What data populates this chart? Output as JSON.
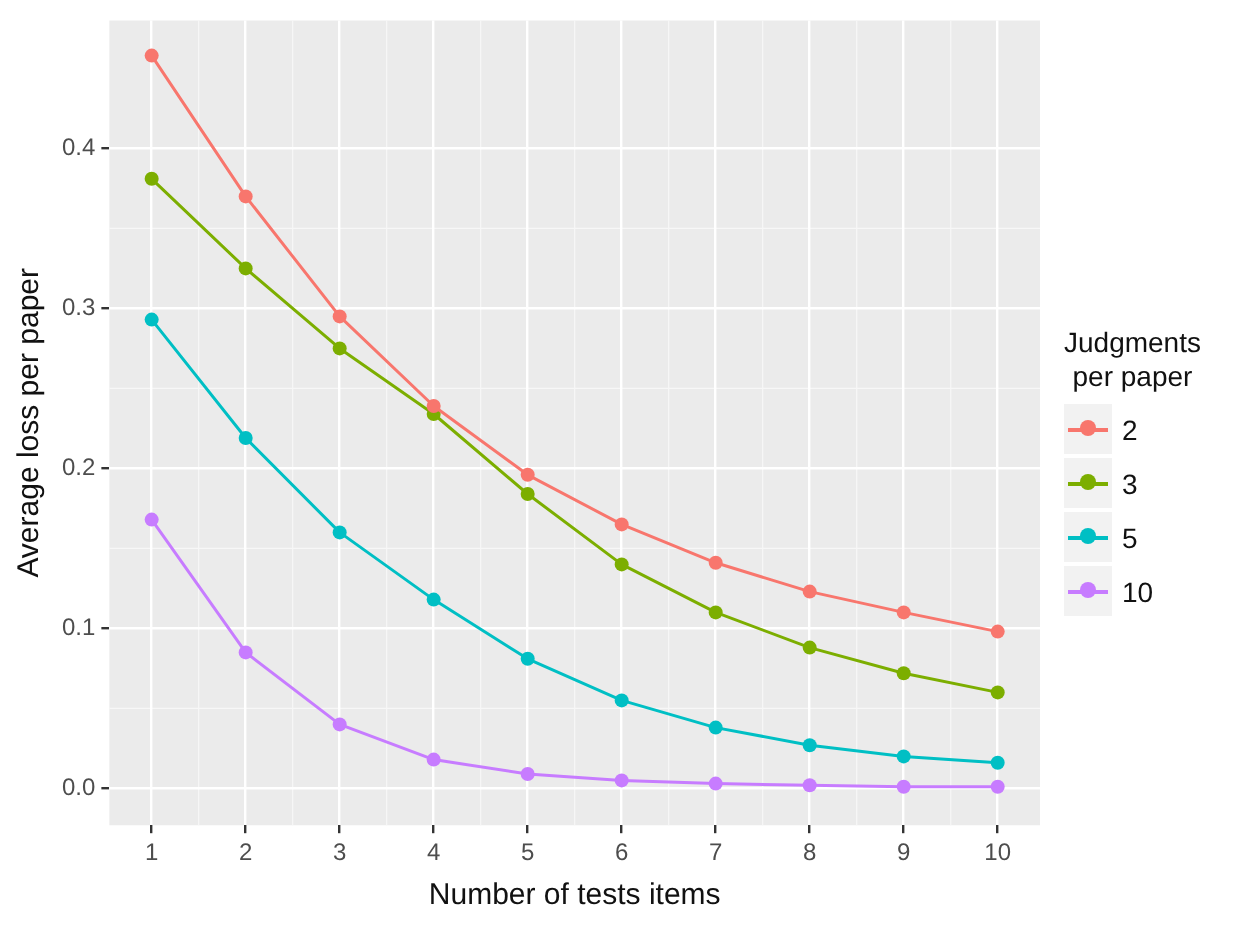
{
  "chart_data": {
    "type": "line",
    "xlabel": "Number of tests items",
    "ylabel": "Average loss per paper",
    "legend_title": "Judgments\nper paper",
    "x": [
      1,
      2,
      3,
      4,
      5,
      6,
      7,
      8,
      9,
      10
    ],
    "series": [
      {
        "name": "2",
        "color": "#f8766d",
        "values": [
          0.458,
          0.37,
          0.295,
          0.239,
          0.196,
          0.165,
          0.141,
          0.123,
          0.11,
          0.098
        ]
      },
      {
        "name": "3",
        "color": "#7cae00",
        "values": [
          0.381,
          0.325,
          0.275,
          0.234,
          0.184,
          0.14,
          0.11,
          0.088,
          0.072,
          0.06
        ]
      },
      {
        "name": "5",
        "color": "#00bfc4",
        "values": [
          0.293,
          0.219,
          0.16,
          0.118,
          0.081,
          0.055,
          0.038,
          0.027,
          0.02,
          0.016
        ]
      },
      {
        "name": "10",
        "color": "#c77cff",
        "values": [
          0.168,
          0.085,
          0.04,
          0.018,
          0.009,
          0.005,
          0.003,
          0.002,
          0.001,
          0.001
        ]
      }
    ],
    "xlim": [
      0.55,
      10.45
    ],
    "xticks": [
      1,
      2,
      3,
      4,
      5,
      6,
      7,
      8,
      9,
      10
    ],
    "ylim": [
      -0.023,
      0.48
    ],
    "yticks": [
      {
        "value": 0,
        "label": "0.0"
      },
      {
        "value": 0.1,
        "label": "0.1"
      },
      {
        "value": 0.2,
        "label": "0.2"
      },
      {
        "value": 0.3,
        "label": "0.3"
      },
      {
        "value": 0.4,
        "label": "0.4"
      }
    ],
    "grid": true,
    "legend": "right",
    "marker": "circle",
    "line_style": "solid"
  }
}
